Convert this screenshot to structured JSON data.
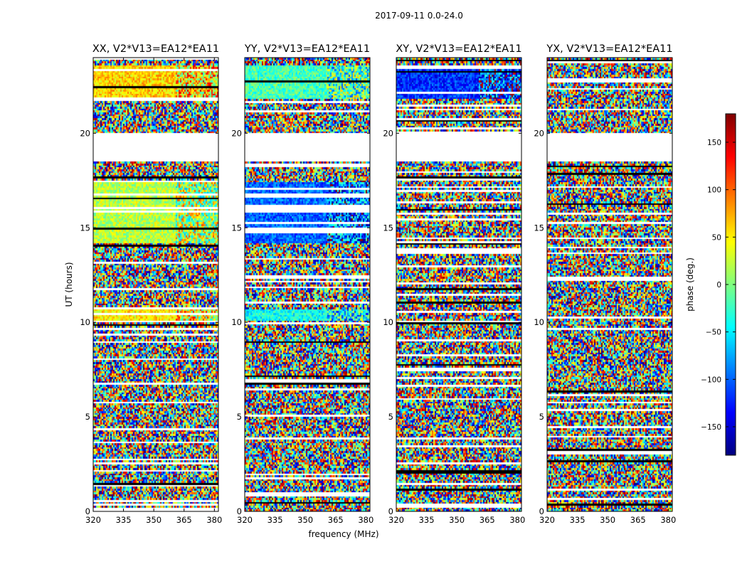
{
  "chart_data": {
    "type": "heatmap",
    "title": "2017-09-11 0.0-24.0",
    "xlabel": "frequency (MHz)",
    "ylabel": "UT (hours)",
    "xlim": [
      320,
      382
    ],
    "ylim": [
      0,
      24
    ],
    "x_ticks": [
      "320",
      "335",
      "350",
      "365",
      "380"
    ],
    "x_tick_values": [
      320,
      335,
      350,
      365,
      380
    ],
    "y_ticks": [
      "0",
      "5",
      "10",
      "15",
      "20"
    ],
    "y_tick_values": [
      0,
      5,
      10,
      15,
      20
    ],
    "panels": [
      {
        "title": "XX, V2*V13=EA12*EA11",
        "pol": "XX"
      },
      {
        "title": "YY, V2*V13=EA12*EA11",
        "pol": "YY"
      },
      {
        "title": "XY, V2*V13=EA12*EA11",
        "pol": "XY"
      },
      {
        "title": "YX, V2*V13=EA12*EA11",
        "pol": "YX"
      }
    ],
    "colorbar": {
      "label": "phase (deg.)",
      "range": [
        -180,
        180
      ],
      "ticks": [
        "150",
        "100",
        "50",
        "0",
        "−50",
        "−100",
        "−150"
      ],
      "tick_values": [
        150,
        100,
        50,
        0,
        -50,
        -100,
        -150
      ],
      "colormap": "jet",
      "colors": [
        "#00007f",
        "#0000ff",
        "#007fff",
        "#00ffff",
        "#7fff7f",
        "#ffff00",
        "#ff7f00",
        "#ff0000",
        "#7f0000"
      ]
    },
    "flagged_ut_ranges": [
      [
        18.4,
        20.0
      ]
    ],
    "coherent_segments": [
      {
        "pol": "XX",
        "ut": [
          21.8,
          23.6
        ],
        "phase": 60
      },
      {
        "pol": "XX",
        "ut": [
          14.1,
          17.3
        ],
        "phase": 20
      },
      {
        "pol": "XX",
        "ut": [
          10.0,
          10.6
        ],
        "phase": 50
      },
      {
        "pol": "YY",
        "ut": [
          21.8,
          23.6
        ],
        "phase": -20
      },
      {
        "pol": "YY",
        "ut": [
          14.1,
          17.3
        ],
        "phase": -100
      },
      {
        "pol": "YY",
        "ut": [
          10.0,
          10.6
        ],
        "phase": -40
      },
      {
        "pol": "XY",
        "ut": [
          21.8,
          23.6
        ],
        "phase": -120
      }
    ]
  }
}
